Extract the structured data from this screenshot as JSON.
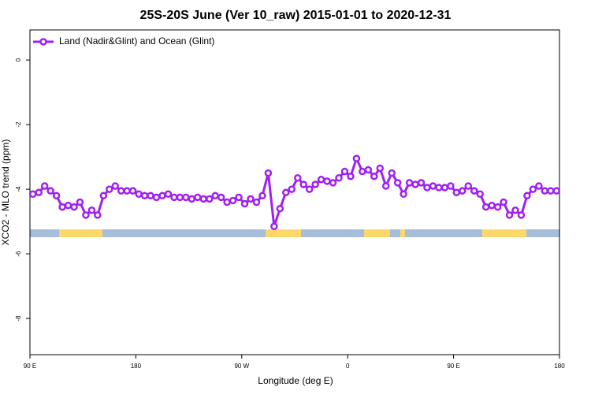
{
  "chart_data": {
    "type": "line",
    "title": "25S-20S June (Ver 10_raw)   2015-01-01 to 2020-12-31",
    "xlabel": "Longitude (deg E)",
    "ylabel": "XCO2 - MLO trend (ppm)",
    "xlim": [
      90,
      540
    ],
    "xticks": [
      {
        "value": 90,
        "label": "90 E"
      },
      {
        "value": 180,
        "label": "180"
      },
      {
        "value": 270,
        "label": "90 W"
      },
      {
        "value": 360,
        "label": "0"
      },
      {
        "value": 450,
        "label": "90 E"
      },
      {
        "value": 540,
        "label": "180"
      }
    ],
    "ylim": [
      -9.12,
      0.93
    ],
    "yticks": [
      0,
      -2,
      -4,
      -6,
      -8
    ],
    "legend": "top-left",
    "x": [
      92.5,
      97.5,
      102.5,
      107.5,
      112.5,
      117.5,
      122.5,
      127.5,
      132.5,
      137.5,
      142.5,
      147.5,
      152.5,
      157.5,
      162.5,
      167.5,
      172.5,
      177.5,
      182.5,
      187.5,
      192.5,
      197.5,
      202.5,
      207.5,
      212.5,
      217.5,
      222.5,
      227.5,
      232.5,
      237.5,
      242.5,
      247.5,
      252.5,
      257.5,
      262.5,
      267.5,
      272.5,
      277.5,
      282.5,
      287.5,
      292.5,
      297.5,
      302.5,
      307.5,
      312.5,
      317.5,
      322.5,
      327.5,
      332.5,
      337.5,
      342.5,
      347.5,
      352.5,
      357.5,
      362.5,
      367.5,
      372.5,
      377.5,
      382.5,
      387.5,
      392.5,
      397.5,
      402.5,
      407.5,
      412.5,
      417.5,
      422.5,
      427.5,
      432.5,
      437.5,
      442.5,
      447.5,
      452.5,
      457.5,
      462.5,
      467.5,
      472.5,
      477.5,
      482.5,
      487.5,
      492.5,
      497.5,
      502.5,
      507.5,
      512.5,
      517.5,
      522.5,
      527.5,
      532.5,
      537.5
    ],
    "series": [
      {
        "name": "Land (Nadir&Glint) and Ocean (Glint)",
        "color": "#a020f0",
        "values": [
          -4.15,
          -4.1,
          -3.9,
          -4.05,
          -4.2,
          -4.55,
          -4.5,
          -4.55,
          -4.4,
          -4.8,
          -4.65,
          -4.8,
          -4.2,
          -4.0,
          -3.9,
          -4.05,
          -4.05,
          -4.05,
          -4.15,
          -4.2,
          -4.2,
          -4.25,
          -4.2,
          -4.15,
          -4.25,
          -4.25,
          -4.25,
          -4.3,
          -4.25,
          -4.3,
          -4.3,
          -4.2,
          -4.25,
          -4.4,
          -4.35,
          -4.25,
          -4.45,
          -4.3,
          -4.4,
          -4.2,
          -3.5,
          -5.15,
          -4.6,
          -4.1,
          -4.0,
          -3.65,
          -3.85,
          -4.0,
          -3.85,
          -3.7,
          -3.75,
          -3.8,
          -3.65,
          -3.45,
          -3.6,
          -3.05,
          -3.45,
          -3.4,
          -3.6,
          -3.35,
          -3.9,
          -3.5,
          -3.8,
          -4.15,
          -3.8,
          -3.85,
          -3.8,
          -3.95,
          -3.9,
          -3.95,
          -3.95,
          -3.9,
          -4.1,
          -4.05,
          -3.9,
          -4.05,
          -4.15,
          -4.55,
          -4.5,
          -4.55,
          -4.4,
          -4.8,
          -4.65,
          -4.8,
          -4.2,
          -4.0,
          -3.9,
          -4.05,
          -4.05,
          -4.05
        ]
      }
    ]
  }
}
